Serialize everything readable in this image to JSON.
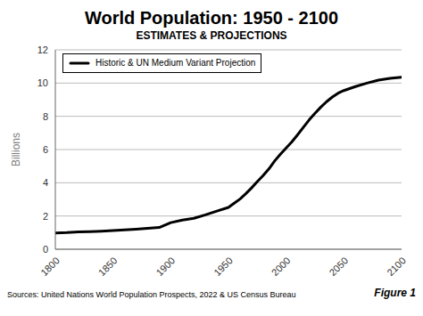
{
  "chart_data": {
    "type": "line",
    "title": "World Population: 1950 - 2100",
    "subtitle": "ESTIMATES & PROJECTIONS",
    "ylabel": "Billions",
    "annotations": [
      "Sources: United Nations World Population Prospects, 2022 & US Census Bureau",
      "Figure 1"
    ],
    "x": [
      1800,
      1810,
      1820,
      1830,
      1840,
      1850,
      1860,
      1870,
      1880,
      1890,
      1900,
      1910,
      1920,
      1930,
      1940,
      1950,
      1955,
      1960,
      1965,
      1970,
      1975,
      1980,
      1985,
      1990,
      1995,
      2000,
      2005,
      2010,
      2015,
      2020,
      2025,
      2030,
      2035,
      2040,
      2045,
      2050,
      2060,
      2070,
      2080,
      2090,
      2100
    ],
    "series": [
      {
        "name": "Historic & UN Medium Variant Projection",
        "color": "#000000",
        "values": [
          0.98,
          1.0,
          1.04,
          1.06,
          1.09,
          1.13,
          1.17,
          1.21,
          1.26,
          1.31,
          1.6,
          1.75,
          1.86,
          2.07,
          2.3,
          2.52,
          2.77,
          3.02,
          3.34,
          3.69,
          4.07,
          4.43,
          4.83,
          5.31,
          5.72,
          6.09,
          6.47,
          6.9,
          7.35,
          7.79,
          8.18,
          8.55,
          8.88,
          9.16,
          9.39,
          9.55,
          9.79,
          10.0,
          10.18,
          10.28,
          10.35
        ]
      }
    ],
    "xlim": [
      1800,
      2100
    ],
    "ylim": [
      0,
      12
    ],
    "xticks": [
      1800,
      1850,
      1900,
      1950,
      2000,
      2050,
      2100
    ],
    "yticks": [
      0,
      2,
      4,
      6,
      8,
      10,
      12
    ],
    "grid": "y",
    "legend": "upper left"
  }
}
